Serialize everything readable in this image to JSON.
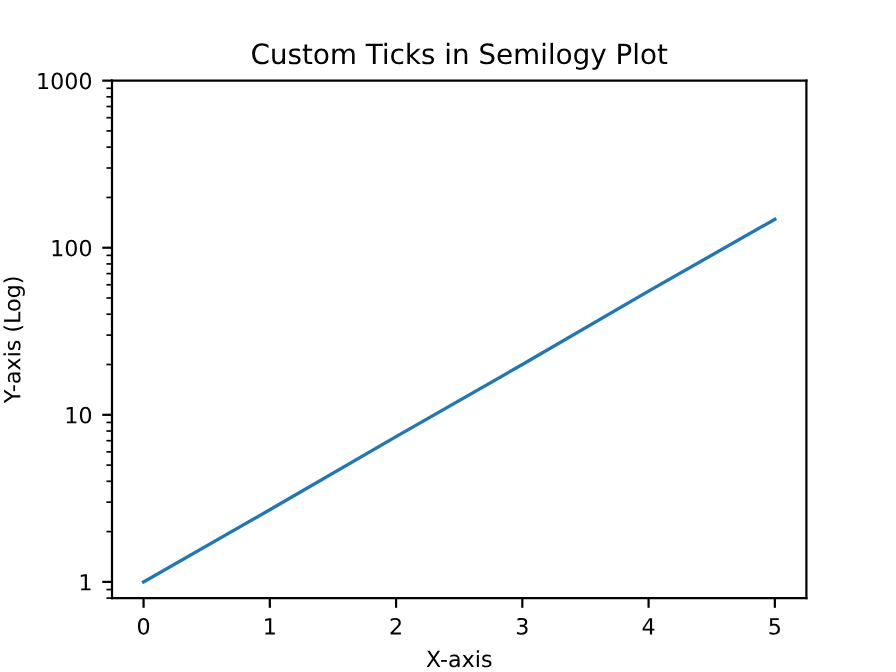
{
  "chart_data": {
    "type": "line",
    "title": "Custom Ticks in Semilogy Plot",
    "xlabel": "X-axis",
    "ylabel": "Y-axis (Log)",
    "x": [
      0,
      1,
      2,
      3,
      4,
      5
    ],
    "series": [
      {
        "color": "#1f77b4",
        "values": [
          1,
          2.7,
          7.4,
          20,
          55,
          148
        ]
      }
    ],
    "log": "y",
    "xlim": [
      -0.25,
      5.25
    ],
    "ylim": [
      0.8,
      1000
    ],
    "xticks": [
      0,
      1,
      2,
      3,
      4,
      5
    ],
    "yticks": [
      1,
      10,
      100,
      1000
    ],
    "grid": false,
    "legend": false,
    "marker": "none",
    "line_style": "solid"
  }
}
